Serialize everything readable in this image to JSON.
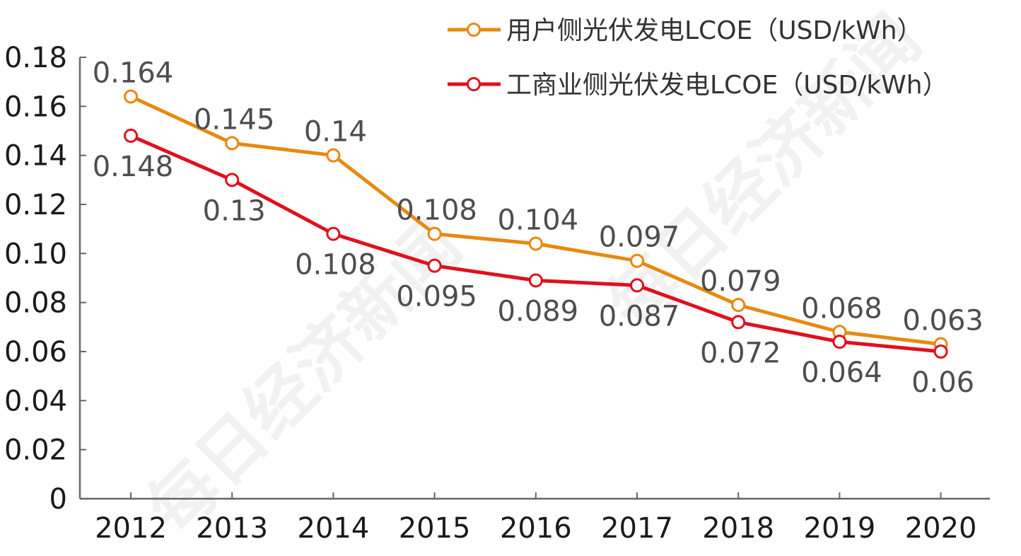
{
  "chart_data": {
    "type": "line",
    "title": "",
    "xlabel": "",
    "ylabel": "",
    "categories": [
      "2012",
      "2013",
      "2014",
      "2015",
      "2016",
      "2017",
      "2018",
      "2019",
      "2020"
    ],
    "ylim": [
      0,
      0.18
    ],
    "y_ticks": [
      "0",
      "0.02",
      "0.04",
      "0.06",
      "0.08",
      "0.10",
      "0.12",
      "0.14",
      "0.16",
      "0.18"
    ],
    "grid": false,
    "legend_position": "top-right",
    "series": [
      {
        "name": "用户侧光伏发电LCOE（USD/kWh）",
        "color": "#E8890F",
        "values": [
          0.164,
          0.145,
          0.14,
          0.108,
          0.104,
          0.097,
          0.079,
          0.068,
          0.063
        ],
        "labels": [
          "0.164",
          "0.145",
          "0.14",
          "0.108",
          "0.104",
          "0.097",
          "0.079",
          "0.068",
          "0.063"
        ]
      },
      {
        "name": "工商业侧光伏发电LCOE（USD/kWh）",
        "color": "#E0101E",
        "values": [
          0.148,
          0.13,
          0.108,
          0.095,
          0.089,
          0.087,
          0.072,
          0.064,
          0.06
        ],
        "labels": [
          "0.148",
          "0.13",
          "0.108",
          "0.095",
          "0.089",
          "0.087",
          "0.072",
          "0.064",
          "0.06"
        ]
      }
    ]
  },
  "watermark": {
    "text": "每日经济新闻"
  }
}
